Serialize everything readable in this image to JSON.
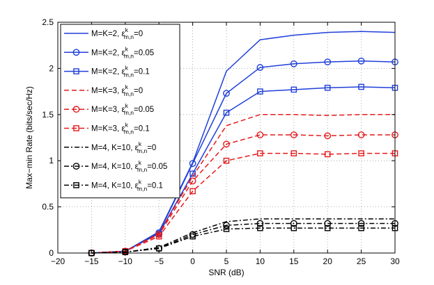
{
  "chart_data": {
    "type": "line",
    "title": "",
    "xlabel": "SNR (dB)",
    "ylabel": "Max−min Rate (bits/sec/Hz)",
    "xlim": [
      -20,
      30
    ],
    "ylim": [
      0,
      2.5
    ],
    "grid": true,
    "legend_position": "top-left",
    "xticks": [
      -20,
      -15,
      -10,
      -5,
      0,
      5,
      10,
      15,
      20,
      25,
      30
    ],
    "xtick_labels": [
      "−20",
      "−15",
      "−10",
      "−5",
      "0",
      "5",
      "10",
      "15",
      "20",
      "25",
      "30"
    ],
    "yticks": [
      0,
      0.5,
      1,
      1.5,
      2,
      2.5
    ],
    "ytick_labels": [
      "0",
      "0.5",
      "1",
      "1.5",
      "2",
      "2.5"
    ],
    "x": [
      -15,
      -10,
      -5,
      0,
      5,
      10,
      15,
      20,
      25,
      30
    ],
    "series": [
      {
        "name": "M=K=2, ε^k_m,n=0",
        "base": "M=K=2, ε",
        "sup": "k",
        "sub": "m,n",
        "tail": "=0",
        "color": "#1f3fd9",
        "dash": "solid",
        "marker": "none",
        "values": [
          0.0,
          0.02,
          0.23,
          0.98,
          1.97,
          2.31,
          2.36,
          2.39,
          2.4,
          2.39
        ]
      },
      {
        "name": "M=K=2, ε^k_m,n=0.05",
        "base": "M=K=2, ε",
        "sup": "k",
        "sub": "m,n",
        "tail": "=0.05",
        "color": "#1f3fd9",
        "dash": "solid",
        "marker": "circle",
        "values": [
          0.0,
          0.02,
          0.22,
          0.97,
          1.73,
          2.01,
          2.05,
          2.07,
          2.08,
          2.07
        ]
      },
      {
        "name": "M=K=2, ε^k_m,n=0.1",
        "base": "M=K=2, ε",
        "sup": "k",
        "sub": "m,n",
        "tail": "=0.1",
        "color": "#1f3fd9",
        "dash": "solid",
        "marker": "square",
        "values": [
          0.0,
          0.02,
          0.21,
          0.86,
          1.52,
          1.75,
          1.77,
          1.79,
          1.8,
          1.79
        ]
      },
      {
        "name": "M=K=3, ε^k_m,n=0",
        "base": "M=K=3, ε",
        "sup": "k",
        "sub": "m,n",
        "tail": "=0",
        "color": "#e41a1c",
        "dash": "dash",
        "marker": "none",
        "values": [
          0.0,
          0.02,
          0.21,
          0.83,
          1.38,
          1.5,
          1.5,
          1.49,
          1.5,
          1.5
        ]
      },
      {
        "name": "M=K=3, ε^k_m,n=0.05",
        "base": "M=K=3, ε",
        "sup": "k",
        "sub": "m,n",
        "tail": "=0.05",
        "color": "#e41a1c",
        "dash": "dash",
        "marker": "circle",
        "values": [
          0.0,
          0.02,
          0.2,
          0.78,
          1.18,
          1.28,
          1.28,
          1.27,
          1.28,
          1.28
        ]
      },
      {
        "name": "M=K=3, ε^k_m,n=0.1",
        "base": "M=K=3, ε",
        "sup": "k",
        "sub": "m,n",
        "tail": "=0.1",
        "color": "#e41a1c",
        "dash": "dash",
        "marker": "square",
        "values": [
          0.0,
          0.02,
          0.18,
          0.67,
          1.0,
          1.08,
          1.08,
          1.07,
          1.08,
          1.08
        ]
      },
      {
        "name": "M=4, K=10, ε^k_m,n=0",
        "base": "M=4, K=10, ε",
        "sup": "k",
        "sub": "m,n",
        "tail": "=0",
        "color": "#000000",
        "dash": "dashdot",
        "marker": "none",
        "values": [
          0.0,
          0.01,
          0.06,
          0.22,
          0.34,
          0.37,
          0.37,
          0.37,
          0.37,
          0.37
        ]
      },
      {
        "name": "M=4, K=10, ε^k_m,n=0.05",
        "base": "M=4, K=10, ε",
        "sup": "k",
        "sub": "m,n",
        "tail": "=0.05",
        "color": "#000000",
        "dash": "dashdot",
        "marker": "circle",
        "values": [
          0.0,
          0.01,
          0.05,
          0.2,
          0.3,
          0.32,
          0.32,
          0.32,
          0.32,
          0.32
        ]
      },
      {
        "name": "M=4, K=10, ε^k_m,n=0.1",
        "base": "M=4, K=10, ε",
        "sup": "k",
        "sub": "m,n",
        "tail": "=0.1",
        "color": "#000000",
        "dash": "dashdot",
        "marker": "square",
        "values": [
          0.0,
          0.01,
          0.05,
          0.18,
          0.26,
          0.27,
          0.27,
          0.27,
          0.27,
          0.27
        ]
      }
    ]
  }
}
